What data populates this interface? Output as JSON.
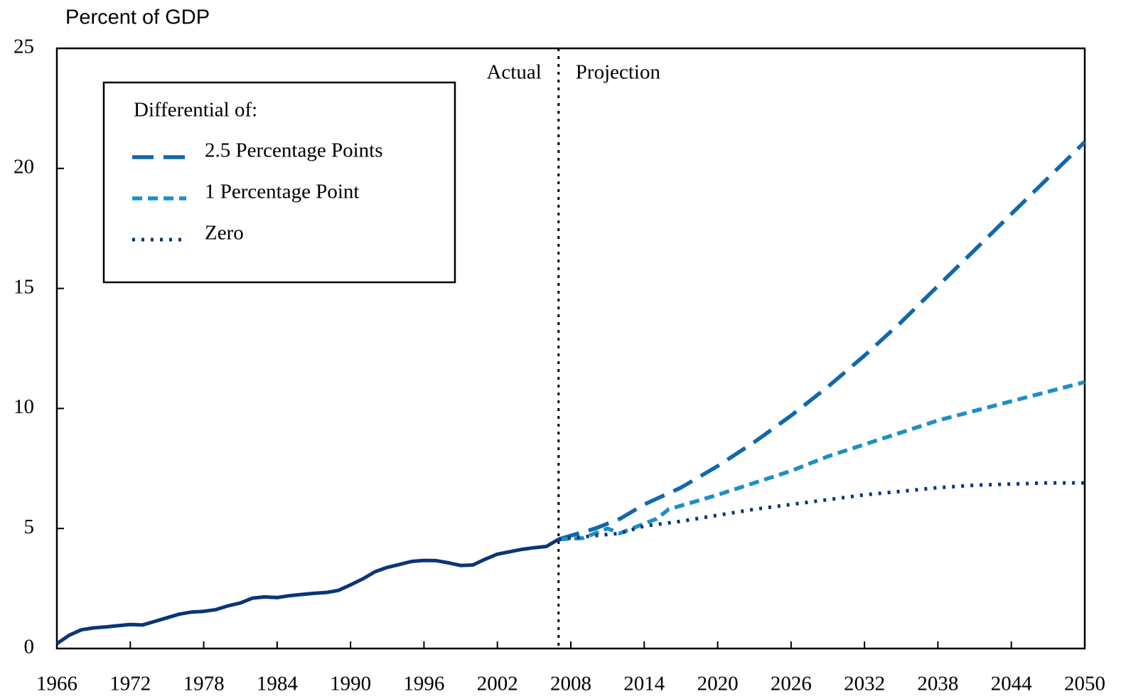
{
  "chart_data": {
    "type": "line",
    "y_axis_label": "Percent of GDP",
    "annotations": {
      "actual": "Actual",
      "projection": "Projection"
    },
    "divider_x": 2007,
    "legend_title": "Differential of:",
    "legend": "upper left",
    "xlim": [
      1966,
      2050
    ],
    "xticks": [
      1966,
      1972,
      1978,
      1984,
      1990,
      1996,
      2002,
      2008,
      2014,
      2020,
      2026,
      2032,
      2038,
      2044,
      2050
    ],
    "ylim": [
      0,
      25
    ],
    "yticks": [
      0,
      5,
      10,
      15,
      20,
      25
    ],
    "grid": false,
    "series": [
      {
        "color": "#0a3578",
        "style": "solid",
        "x": [
          1966,
          1967,
          1968,
          1969,
          1970,
          1971,
          1972,
          1973,
          1974,
          1975,
          1976,
          1977,
          1978,
          1979,
          1980,
          1981,
          1982,
          1983,
          1984,
          1985,
          1986,
          1987,
          1988,
          1989,
          1990,
          1991,
          1992,
          1993,
          1994,
          1995,
          1996,
          1997,
          1998,
          1999,
          2000,
          2001,
          2002,
          2003,
          2004,
          2005,
          2006,
          2007
        ],
        "values": [
          0.2,
          0.55,
          0.78,
          0.86,
          0.9,
          0.95,
          1.0,
          0.98,
          1.13,
          1.28,
          1.43,
          1.52,
          1.55,
          1.62,
          1.78,
          1.9,
          2.1,
          2.15,
          2.12,
          2.2,
          2.25,
          2.3,
          2.33,
          2.42,
          2.65,
          2.9,
          3.2,
          3.38,
          3.5,
          3.63,
          3.67,
          3.66,
          3.57,
          3.46,
          3.48,
          3.72,
          3.93,
          4.03,
          4.13,
          4.2,
          4.25,
          4.55
        ]
      },
      {
        "name": "2.5 Percentage Points",
        "color": "#1068ad",
        "style": "dashed",
        "x": [
          2007,
          2008,
          2010,
          2012,
          2014,
          2017,
          2020,
          2023,
          2026,
          2029,
          2032,
          2035,
          2038,
          2041,
          2044,
          2047,
          2050
        ],
        "values": [
          4.55,
          4.7,
          5.0,
          5.4,
          6.0,
          6.7,
          7.6,
          8.6,
          9.7,
          10.9,
          12.2,
          13.6,
          15.1,
          16.6,
          18.1,
          19.6,
          21.1
        ]
      },
      {
        "name": "1 Percentage Point",
        "color": "#1e8fc4",
        "style": "short-dashed",
        "x": [
          2007,
          2009,
          2011,
          2012,
          2014,
          2015,
          2016,
          2018,
          2020,
          2023,
          2026,
          2029,
          2032,
          2035,
          2038,
          2041,
          2044,
          2047,
          2050
        ],
        "values": [
          4.55,
          4.6,
          5.0,
          4.8,
          5.2,
          5.4,
          5.8,
          6.1,
          6.4,
          6.9,
          7.4,
          8.0,
          8.5,
          9.0,
          9.5,
          9.9,
          10.3,
          10.7,
          11.1
        ]
      },
      {
        "name": "Zero",
        "color": "#0a3578",
        "style": "dotted",
        "x": [
          2007,
          2010,
          2012,
          2014,
          2017,
          2020,
          2023,
          2026,
          2029,
          2032,
          2035,
          2038,
          2041,
          2044,
          2047,
          2050
        ],
        "values": [
          4.55,
          4.7,
          4.8,
          5.1,
          5.3,
          5.55,
          5.8,
          6.0,
          6.2,
          6.4,
          6.55,
          6.7,
          6.8,
          6.85,
          6.9,
          6.9
        ]
      }
    ]
  }
}
